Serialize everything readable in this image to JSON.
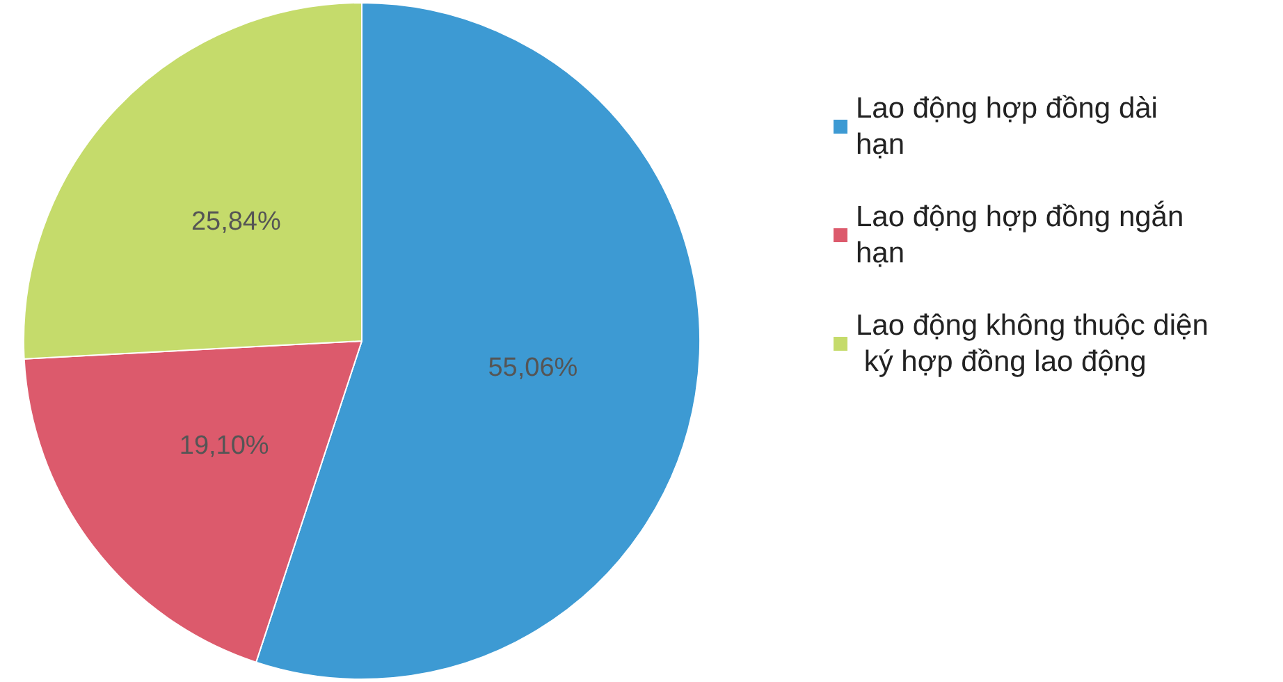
{
  "chart_data": {
    "type": "pie",
    "categories": [
      "Lao động hợp đồng dài hạn",
      "Lao động hợp đồng ngắn hạn",
      "Lao động không thuộc diện ký hợp đồng lao động"
    ],
    "values": [
      55.06,
      19.1,
      25.84
    ],
    "colors": [
      "#3d9ad3",
      "#dc5a6c",
      "#c5db6b"
    ],
    "value_labels": [
      "55,06%",
      "19,10%",
      "25,84%"
    ],
    "legend": "right"
  }
}
